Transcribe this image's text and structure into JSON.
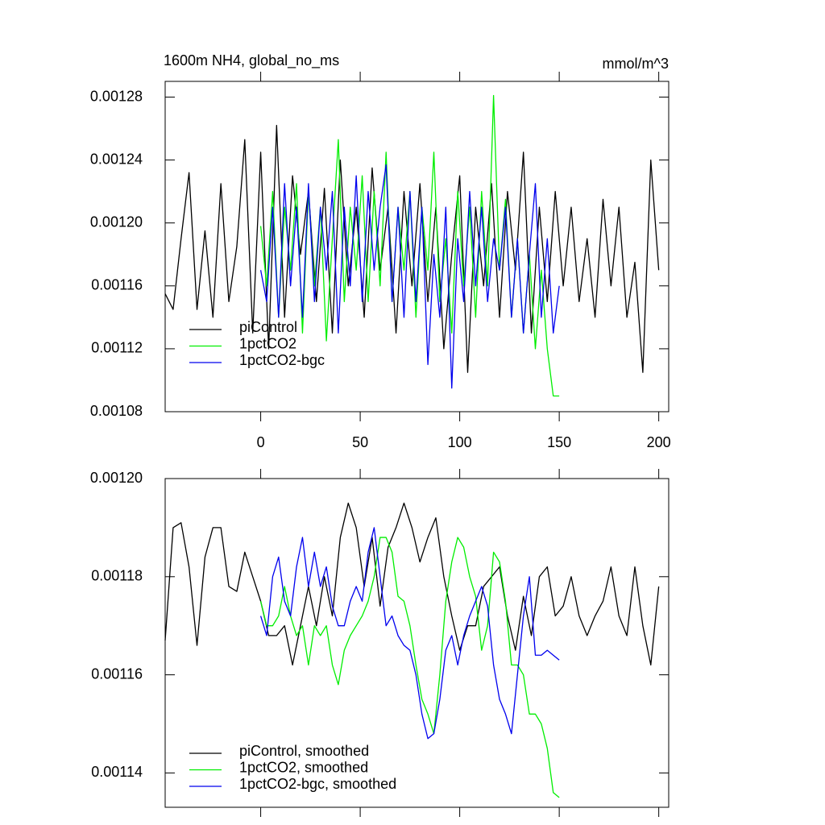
{
  "chart_data": [
    {
      "type": "line",
      "title": "1600m NH4, global_no_ms",
      "units": "mmol/m^3",
      "xlim": [
        -48,
        205
      ],
      "xticks": [
        0,
        50,
        100,
        150,
        200
      ],
      "xtick_labels": true,
      "ylim": [
        0.00108,
        0.00129
      ],
      "yticks": [
        0.00108,
        0.00112,
        0.00116,
        {
          "value": 0.0012,
          "label": "0.00120"
        },
        0.00124,
        0.00128
      ],
      "legend": "lower left",
      "series": [
        {
          "name": "piControl",
          "color": "#000000",
          "x": [
            -48,
            -44,
            -40,
            -36,
            -32,
            -28,
            -24,
            -20,
            -16,
            -12,
            -8,
            -4,
            0,
            4,
            8,
            12,
            16,
            20,
            24,
            28,
            32,
            36,
            40,
            44,
            48,
            52,
            56,
            60,
            64,
            68,
            72,
            76,
            80,
            84,
            88,
            92,
            96,
            100,
            104,
            108,
            112,
            116,
            120,
            124,
            128,
            132,
            136,
            140,
            144,
            148,
            152,
            156,
            160,
            164,
            168,
            172,
            176,
            180,
            184,
            188,
            192,
            196,
            200
          ],
          "values": [
            0.001155,
            0.001145,
            0.00119,
            0.001232,
            0.001145,
            0.001195,
            0.00114,
            0.001225,
            0.00115,
            0.001185,
            0.001253,
            0.00113,
            0.001245,
            0.00112,
            0.001262,
            0.00114,
            0.00123,
            0.00118,
            0.00122,
            0.00115,
            0.001222,
            0.00113,
            0.00124,
            0.00116,
            0.00121,
            0.00114,
            0.001235,
            0.00117,
            0.00121,
            0.00113,
            0.00122,
            0.00116,
            0.001225,
            0.00115,
            0.00121,
            0.00112,
            0.00118,
            0.00123,
            0.001105,
            0.00121,
            0.00116,
            0.001225,
            0.00114,
            0.00122,
            0.00117,
            0.001245,
            0.00113,
            0.00121,
            0.00115,
            0.00122,
            0.00116,
            0.00121,
            0.00115,
            0.00119,
            0.00114,
            0.001215,
            0.00116,
            0.00121,
            0.00114,
            0.001175,
            0.001105,
            0.00124,
            0.00117
          ]
        },
        {
          "name": "1pctCO2",
          "color": "#00ee00",
          "x": [
            0,
            3,
            6,
            9,
            12,
            15,
            18,
            21,
            24,
            27,
            30,
            33,
            36,
            39,
            42,
            45,
            48,
            51,
            54,
            57,
            60,
            63,
            66,
            69,
            72,
            75,
            78,
            81,
            84,
            87,
            90,
            93,
            96,
            99,
            102,
            105,
            108,
            111,
            114,
            117,
            120,
            123,
            126,
            129,
            132,
            135,
            138,
            141,
            144,
            147,
            150
          ],
          "values": [
            0.001198,
            0.00116,
            0.00122,
            0.00114,
            0.00121,
            0.00117,
            0.001225,
            0.00113,
            0.00122,
            0.00116,
            0.00121,
            0.001125,
            0.00119,
            0.001253,
            0.00115,
            0.00121,
            0.00117,
            0.00123,
            0.00115,
            0.00122,
            0.00116,
            0.001245,
            0.00115,
            0.00121,
            0.00117,
            0.00122,
            0.00114,
            0.00121,
            0.00117,
            0.001245,
            0.00115,
            0.00119,
            0.00113,
            0.00122,
            0.00116,
            0.00121,
            0.00114,
            0.00122,
            0.00116,
            0.001281,
            0.00117,
            0.001215,
            0.00114,
            0.00119,
            0.00113,
            0.00118,
            0.00112,
            0.00117,
            0.00112,
            0.00109,
            0.00109
          ]
        },
        {
          "name": "1pctCO2-bgc",
          "color": "#0000ee",
          "x": [
            0,
            3,
            6,
            9,
            12,
            15,
            18,
            21,
            24,
            27,
            30,
            33,
            36,
            39,
            42,
            45,
            48,
            51,
            54,
            57,
            60,
            63,
            66,
            69,
            72,
            75,
            78,
            81,
            84,
            87,
            90,
            93,
            96,
            99,
            102,
            105,
            108,
            111,
            114,
            117,
            120,
            123,
            126,
            129,
            132,
            135,
            138,
            141,
            144,
            147,
            150
          ],
          "values": [
            0.00117,
            0.00115,
            0.00121,
            0.00114,
            0.001225,
            0.00116,
            0.00121,
            0.00114,
            0.001225,
            0.00115,
            0.00121,
            0.00117,
            0.00122,
            0.00113,
            0.00121,
            0.00116,
            0.00123,
            0.00115,
            0.00122,
            0.00117,
            0.00121,
            0.001237,
            0.00115,
            0.00121,
            0.00114,
            0.00122,
            0.00115,
            0.00121,
            0.00111,
            0.00118,
            0.00114,
            0.00121,
            0.001095,
            0.00119,
            0.00115,
            0.00122,
            0.00116,
            0.00121,
            0.00115,
            0.00119,
            0.00117,
            0.00121,
            0.00114,
            0.00119,
            0.00113,
            0.00118,
            0.001225,
            0.00114,
            0.00119,
            0.00113,
            0.00116
          ]
        }
      ]
    },
    {
      "type": "line",
      "xlim": [
        -48,
        205
      ],
      "xticks": [
        0,
        50,
        100,
        150,
        200
      ],
      "xtick_labels": false,
      "ylim": [
        0.001133,
        0.0012
      ],
      "yticks": [
        0.00114,
        0.00116,
        0.00118,
        {
          "value": 0.0012,
          "label": "0.00120"
        }
      ],
      "legend": "lower left",
      "series": [
        {
          "name": "piControl, smoothed",
          "color": "#000000",
          "x": [
            -48,
            -44,
            -40,
            -36,
            -32,
            -28,
            -24,
            -20,
            -16,
            -12,
            -8,
            -4,
            0,
            4,
            8,
            12,
            16,
            20,
            24,
            28,
            32,
            36,
            40,
            44,
            48,
            52,
            56,
            60,
            64,
            68,
            72,
            76,
            80,
            84,
            88,
            92,
            96,
            100,
            104,
            108,
            112,
            116,
            120,
            124,
            128,
            132,
            136,
            140,
            144,
            148,
            152,
            156,
            160,
            164,
            168,
            172,
            176,
            180,
            184,
            188,
            192,
            196,
            200
          ],
          "values": [
            0.001167,
            0.00119,
            0.001191,
            0.001182,
            0.001166,
            0.001184,
            0.00119,
            0.00119,
            0.001178,
            0.001177,
            0.001185,
            0.00118,
            0.001175,
            0.001168,
            0.001168,
            0.00117,
            0.001162,
            0.00117,
            0.001178,
            0.00117,
            0.00118,
            0.001172,
            0.001188,
            0.001195,
            0.00119,
            0.001178,
            0.001188,
            0.001174,
            0.001186,
            0.00119,
            0.001195,
            0.00119,
            0.001183,
            0.001188,
            0.001192,
            0.00118,
            0.001172,
            0.001165,
            0.00117,
            0.00117,
            0.001178,
            0.00118,
            0.001182,
            0.001172,
            0.001165,
            0.001176,
            0.001168,
            0.00118,
            0.001182,
            0.001172,
            0.001174,
            0.00118,
            0.001172,
            0.001168,
            0.001172,
            0.001175,
            0.001182,
            0.001172,
            0.001168,
            0.001182,
            0.00117,
            0.001162,
            0.001178
          ]
        },
        {
          "name": "1pctCO2, smoothed",
          "color": "#00ee00",
          "x": [
            0,
            3,
            6,
            9,
            12,
            15,
            18,
            21,
            24,
            27,
            30,
            33,
            36,
            39,
            42,
            45,
            48,
            51,
            54,
            57,
            60,
            63,
            66,
            69,
            72,
            75,
            78,
            81,
            84,
            87,
            90,
            93,
            96,
            99,
            102,
            105,
            108,
            111,
            114,
            117,
            120,
            123,
            126,
            129,
            132,
            135,
            138,
            141,
            144,
            147,
            150
          ],
          "values": [
            0.001175,
            0.00117,
            0.00117,
            0.001172,
            0.001178,
            0.001172,
            0.001168,
            0.00117,
            0.001162,
            0.00117,
            0.001168,
            0.00117,
            0.001162,
            0.001158,
            0.001165,
            0.001168,
            0.00117,
            0.001172,
            0.001175,
            0.00118,
            0.001188,
            0.001188,
            0.001185,
            0.001176,
            0.001175,
            0.00117,
            0.001162,
            0.001155,
            0.001152,
            0.001148,
            0.00116,
            0.001175,
            0.001183,
            0.001188,
            0.001186,
            0.00118,
            0.001176,
            0.001165,
            0.00117,
            0.001185,
            0.001183,
            0.001175,
            0.001162,
            0.001162,
            0.00116,
            0.001152,
            0.001152,
            0.00115,
            0.001145,
            0.001136,
            0.001135
          ]
        },
        {
          "name": "1pctCO2-bgc, smoothed",
          "color": "#0000ee",
          "x": [
            0,
            3,
            6,
            9,
            12,
            15,
            18,
            21,
            24,
            27,
            30,
            33,
            36,
            39,
            42,
            45,
            48,
            51,
            54,
            57,
            60,
            63,
            66,
            69,
            72,
            75,
            78,
            81,
            84,
            87,
            90,
            93,
            96,
            99,
            102,
            105,
            108,
            111,
            114,
            117,
            120,
            123,
            126,
            129,
            132,
            135,
            138,
            141,
            144,
            147,
            150
          ],
          "values": [
            0.001172,
            0.001168,
            0.00118,
            0.001184,
            0.001175,
            0.001172,
            0.001182,
            0.001188,
            0.001178,
            0.001185,
            0.001178,
            0.001182,
            0.001174,
            0.00117,
            0.00117,
            0.001175,
            0.001178,
            0.001175,
            0.001185,
            0.00119,
            0.00118,
            0.00117,
            0.001172,
            0.001168,
            0.001166,
            0.001165,
            0.00116,
            0.001152,
            0.001147,
            0.001148,
            0.001155,
            0.001165,
            0.001168,
            0.001162,
            0.001168,
            0.001172,
            0.001175,
            0.001178,
            0.001174,
            0.001162,
            0.001155,
            0.001152,
            0.001148,
            0.00116,
            0.001172,
            0.00118,
            0.001164,
            0.001164,
            0.001165,
            0.001164,
            0.001163
          ]
        }
      ]
    }
  ]
}
